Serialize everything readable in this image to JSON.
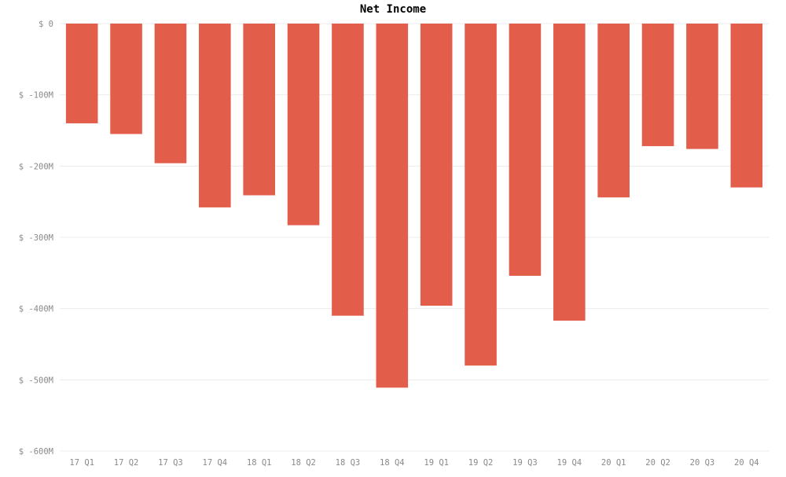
{
  "chart_data": {
    "type": "bar",
    "title": "Net Income",
    "xlabel": "",
    "ylabel": "",
    "categories": [
      "17 Q1",
      "17 Q2",
      "17 Q3",
      "17 Q4",
      "18 Q1",
      "18 Q2",
      "18 Q3",
      "18 Q4",
      "19 Q1",
      "19 Q2",
      "19 Q3",
      "19 Q4",
      "20 Q1",
      "20 Q2",
      "20 Q3",
      "20 Q4"
    ],
    "values": [
      -140,
      -155,
      -196,
      -258,
      -241,
      -283,
      -410,
      -511,
      -396,
      -480,
      -354,
      -417,
      -244,
      -172,
      -176,
      -230
    ],
    "ylim": [
      -600,
      0
    ],
    "yticks": [
      0,
      -100,
      -200,
      -300,
      -400,
      -500,
      -600
    ],
    "ytick_labels": [
      "$ 0",
      "$ -100M",
      "$ -200M",
      "$ -300M",
      "$ -400M",
      "$ -500M",
      "$ -600M"
    ],
    "grid": true,
    "legend": "none",
    "bar_color": "#e35d4b",
    "grid_color": "#ececec"
  }
}
